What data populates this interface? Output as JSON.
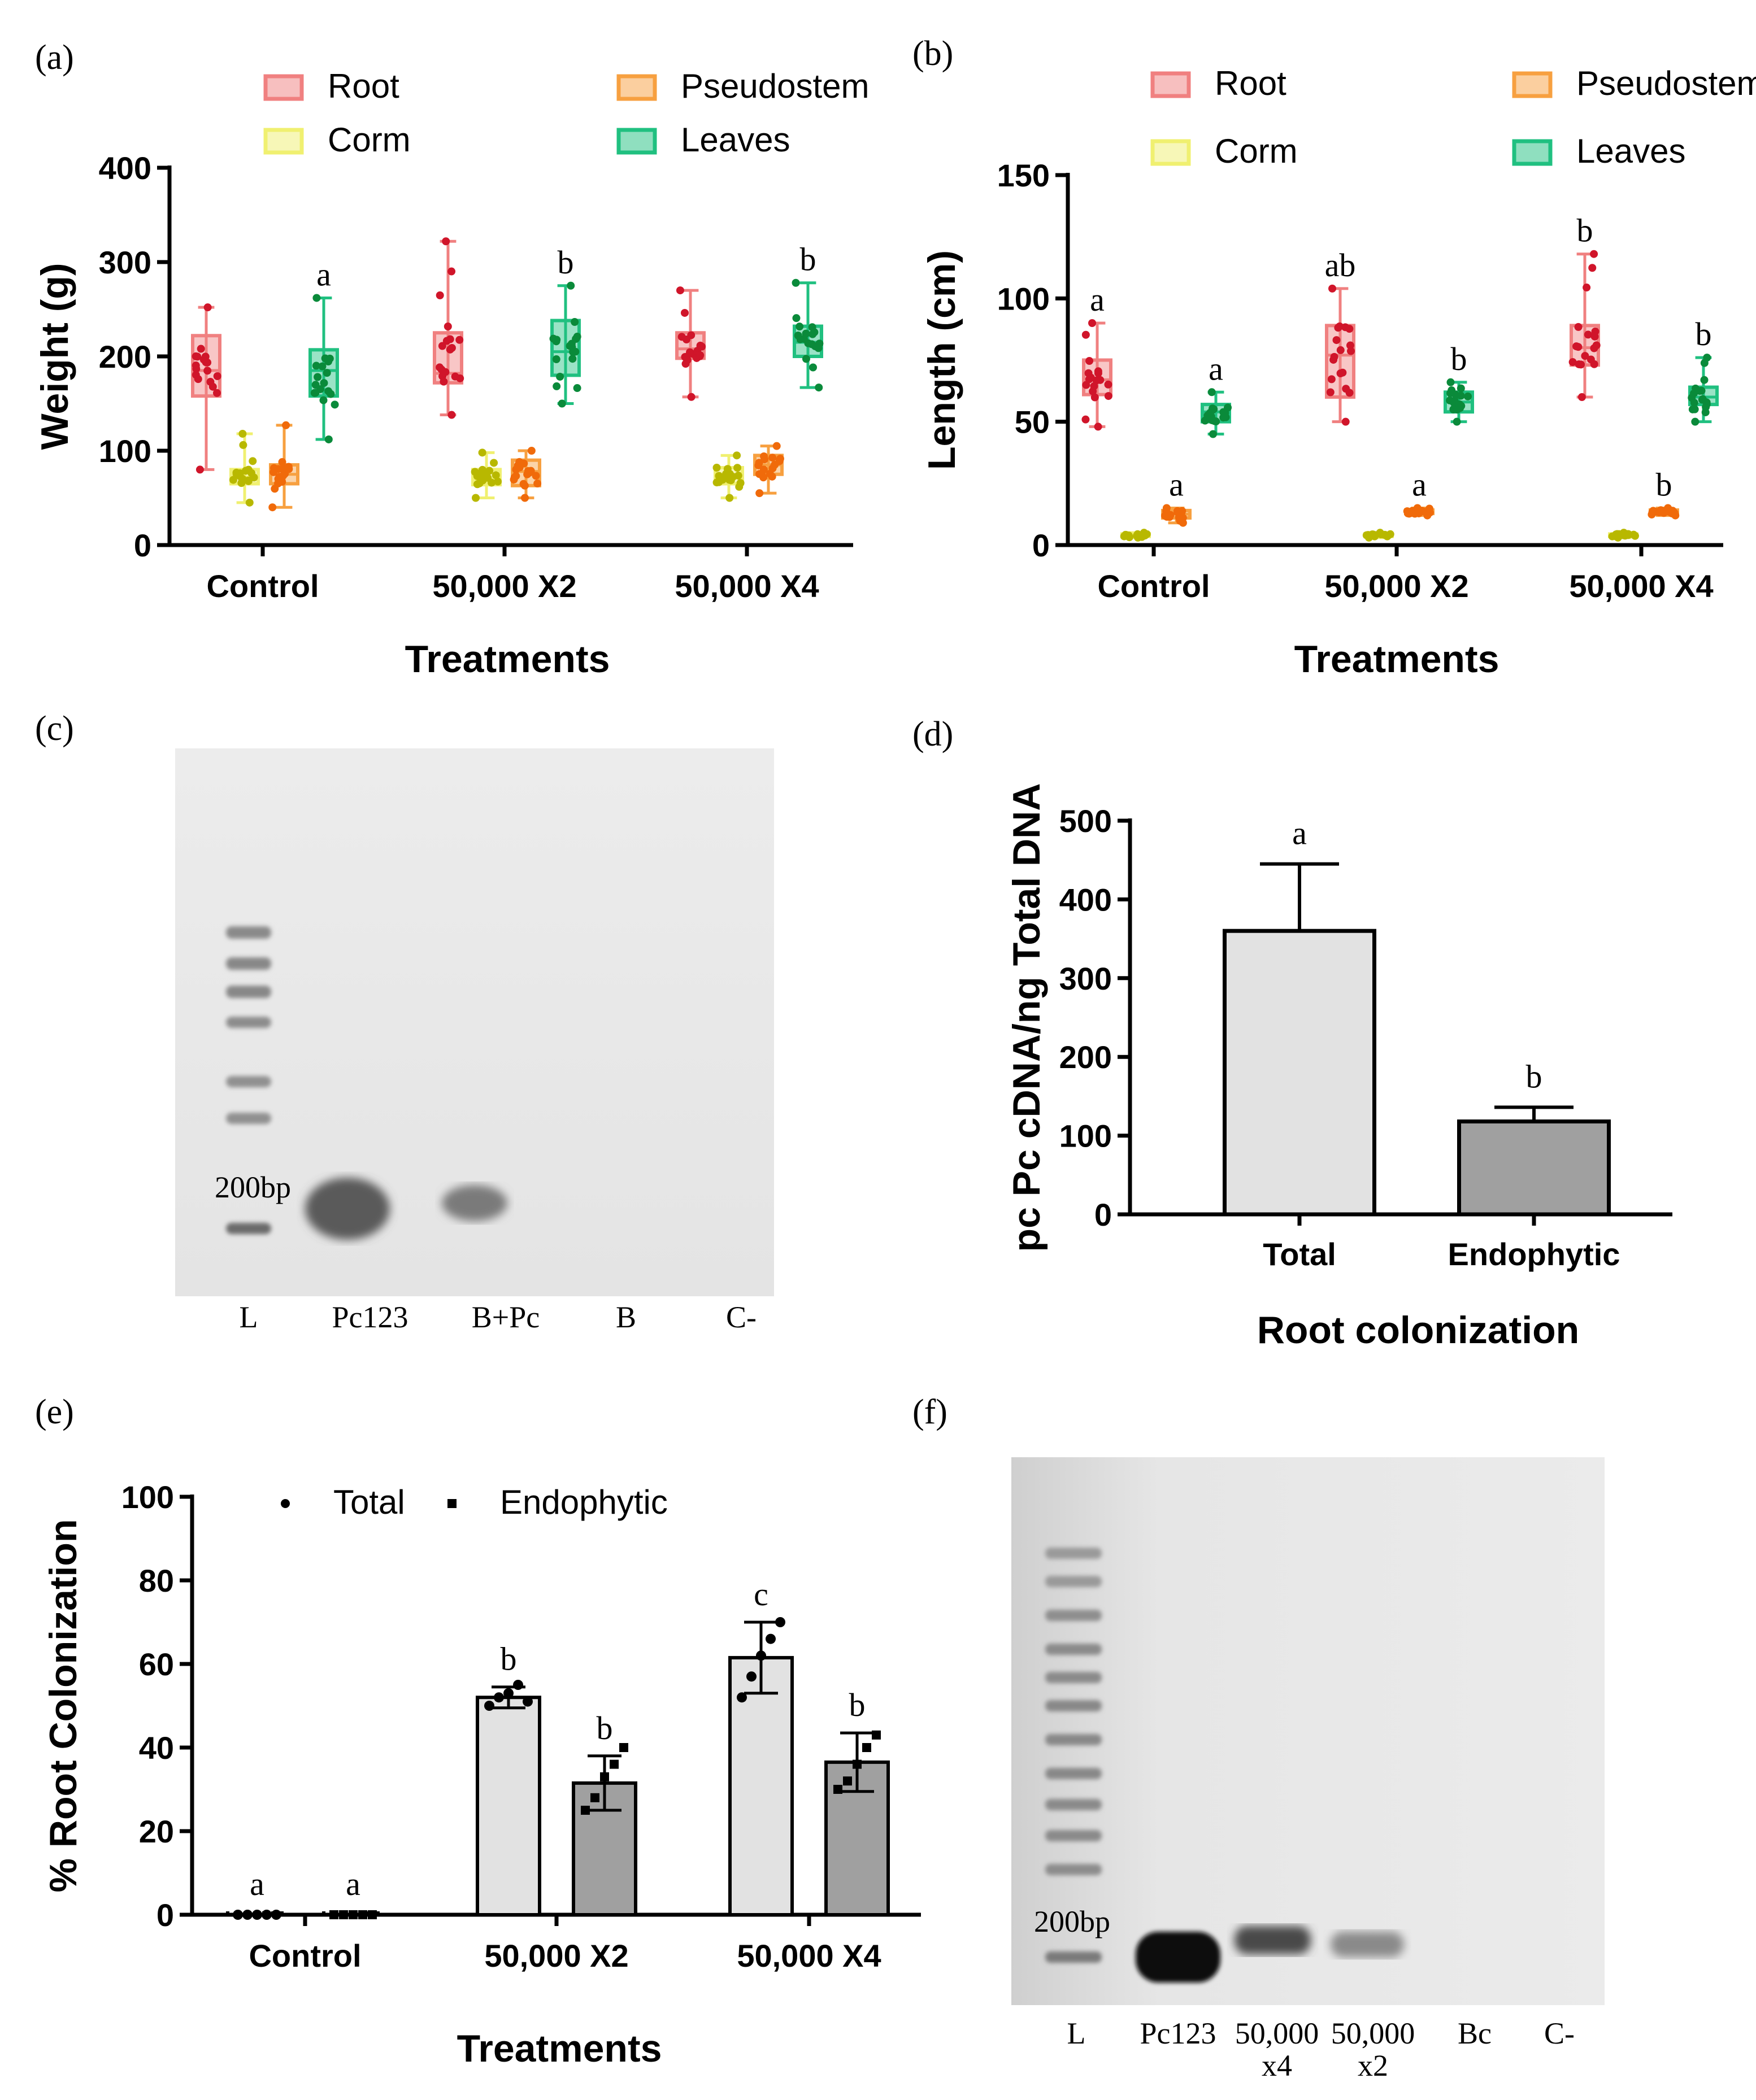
{
  "panels": {
    "a": "(a)",
    "b": "(b)",
    "c": "(c)",
    "d": "(d)",
    "e": "(e)",
    "f": "(f)"
  },
  "colors": {
    "root": "#f08080",
    "root_dot": "#d0152a",
    "pseudostem": "#f7a040",
    "pseudostem_dot": "#f06a0a",
    "corm": "#f0f070",
    "corm_dot": "#b8b800",
    "leaves": "#20c080",
    "leaves_dot": "#0a8a3a",
    "bar_total": "#e2e2e2",
    "bar_endo": "#a0a0a0"
  },
  "gel_c": {
    "marker_label": "200bp",
    "lanes": [
      "L",
      "Pc123",
      "B+Pc",
      "B",
      "C-"
    ]
  },
  "gel_f": {
    "marker_label": "200bp",
    "lanes": [
      "L",
      "Pc123",
      "50,000",
      "50,000",
      "Bc",
      "C-"
    ],
    "lanes_line2": [
      "",
      "",
      "x4",
      "x2",
      "",
      ""
    ]
  },
  "chart_data": [
    {
      "id": "a",
      "type": "box",
      "xlabel": "Treatments",
      "ylabel": "Weight (g)",
      "ylim": [
        0,
        400
      ],
      "yticks": [
        "0",
        "100",
        "200",
        "300",
        "400"
      ],
      "categories": [
        "Control",
        "50,000 X2",
        "50,000 X4"
      ],
      "legend": [
        "Root",
        "Pseudostem",
        "Corm",
        "Leaves"
      ],
      "legend_position": "top",
      "series": [
        {
          "name": "Root",
          "boxes": [
            {
              "min": 80,
              "q1": 158,
              "median": 185,
              "q3": 222,
              "max": 252
            },
            {
              "min": 138,
              "q1": 172,
              "median": 182,
              "q3": 225,
              "max": 322
            },
            {
              "min": 157,
              "q1": 198,
              "median": 208,
              "q3": 225,
              "max": 270
            }
          ],
          "labels": [
            "",
            "",
            ""
          ]
        },
        {
          "name": "Corm",
          "boxes": [
            {
              "min": 45,
              "q1": 65,
              "median": 72,
              "q3": 80,
              "max": 118
            },
            {
              "min": 50,
              "q1": 64,
              "median": 70,
              "q3": 80,
              "max": 98
            },
            {
              "min": 50,
              "q1": 65,
              "median": 72,
              "q3": 82,
              "max": 95
            }
          ],
          "labels": [
            "",
            "",
            ""
          ]
        },
        {
          "name": "Pseudostem",
          "boxes": [
            {
              "min": 40,
              "q1": 65,
              "median": 75,
              "q3": 85,
              "max": 127
            },
            {
              "min": 50,
              "q1": 63,
              "median": 78,
              "q3": 90,
              "max": 100
            },
            {
              "min": 55,
              "q1": 75,
              "median": 85,
              "q3": 95,
              "max": 105
            }
          ],
          "labels": [
            "",
            "",
            ""
          ]
        },
        {
          "name": "Leaves",
          "boxes": [
            {
              "min": 112,
              "q1": 158,
              "median": 185,
              "q3": 207,
              "max": 262
            },
            {
              "min": 150,
              "q1": 180,
              "median": 205,
              "q3": 238,
              "max": 275
            },
            {
              "min": 167,
              "q1": 200,
              "median": 215,
              "q3": 232,
              "max": 278
            }
          ],
          "labels": [
            "a",
            "b",
            "b"
          ]
        }
      ]
    },
    {
      "id": "b",
      "type": "box",
      "xlabel": "Treatments",
      "ylabel": "Length (cm)",
      "ylim": [
        0,
        150
      ],
      "yticks": [
        "0",
        "50",
        "100",
        "150"
      ],
      "categories": [
        "Control",
        "50,000 X2",
        "50,000 X4"
      ],
      "legend": [
        "Root",
        "Pseudostem",
        "Corm",
        "Leaves"
      ],
      "legend_position": "top",
      "series": [
        {
          "name": "Root",
          "boxes": [
            {
              "min": 48,
              "q1": 61,
              "median": 67,
              "q3": 75,
              "max": 90
            },
            {
              "min": 50,
              "q1": 60,
              "median": 77,
              "q3": 89,
              "max": 104
            },
            {
              "min": 60,
              "q1": 73,
              "median": 80,
              "q3": 89,
              "max": 118
            }
          ],
          "labels": [
            "a",
            "ab",
            "b"
          ]
        },
        {
          "name": "Corm",
          "boxes": [
            {
              "min": 3,
              "q1": 3.5,
              "median": 4,
              "q3": 4.5,
              "max": 5
            },
            {
              "min": 3,
              "q1": 3.5,
              "median": 4,
              "q3": 4.5,
              "max": 5
            },
            {
              "min": 3,
              "q1": 3.5,
              "median": 4,
              "q3": 4.5,
              "max": 5
            }
          ],
          "labels": [
            "",
            "",
            ""
          ]
        },
        {
          "name": "Pseudostem",
          "boxes": [
            {
              "min": 9,
              "q1": 11,
              "median": 12.5,
              "q3": 14,
              "max": 15
            },
            {
              "min": 12,
              "q1": 12.8,
              "median": 13.5,
              "q3": 14.2,
              "max": 15
            },
            {
              "min": 12,
              "q1": 12.8,
              "median": 13.5,
              "q3": 14.2,
              "max": 15
            }
          ],
          "labels": [
            "a",
            "a",
            "b"
          ]
        },
        {
          "name": "Leaves",
          "boxes": [
            {
              "min": 45,
              "q1": 50,
              "median": 54,
              "q3": 57,
              "max": 62
            },
            {
              "min": 50,
              "q1": 54,
              "median": 58,
              "q3": 62,
              "max": 66
            },
            {
              "min": 50,
              "q1": 57,
              "median": 60,
              "q3": 64,
              "max": 76
            }
          ],
          "labels": [
            "a",
            "b",
            "b"
          ]
        }
      ]
    },
    {
      "id": "d",
      "type": "bar",
      "xlabel": "Root colonization",
      "ylabel": "pc Pc cDNA/ng Total DNA",
      "ylim": [
        0,
        500
      ],
      "yticks": [
        "0",
        "100",
        "200",
        "300",
        "400",
        "500"
      ],
      "categories": [
        "Total",
        "Endophytic"
      ],
      "values": [
        360,
        118
      ],
      "errors": [
        85,
        18
      ],
      "labels": [
        "a",
        "b"
      ]
    },
    {
      "id": "e",
      "type": "bar",
      "xlabel": "Treatments",
      "ylabel": "% Root Colonization",
      "ylim": [
        0,
        100
      ],
      "yticks": [
        "0",
        "20",
        "40",
        "60",
        "80",
        "100"
      ],
      "categories": [
        "Control",
        "50,000 X2",
        "50,000 X4"
      ],
      "legend": [
        "Total",
        "Endophytic"
      ],
      "legend_position": "top",
      "series": [
        {
          "name": "Total",
          "values": [
            0,
            52,
            61.5
          ],
          "errors": [
            0,
            2.5,
            8.5
          ],
          "labels": [
            "a",
            "b",
            "c"
          ],
          "points": [
            [
              0,
              0,
              0,
              0,
              0
            ],
            [
              50,
              52,
              53,
              55,
              51
            ],
            [
              52,
              57,
              62,
              66,
              70
            ]
          ]
        },
        {
          "name": "Endophytic",
          "values": [
            0,
            31.5,
            36.5
          ],
          "errors": [
            0,
            6.5,
            7
          ],
          "labels": [
            "a",
            "b",
            "b"
          ],
          "points": [
            [
              0,
              0,
              0,
              0,
              0
            ],
            [
              25,
              28,
              33,
              36,
              40
            ],
            [
              30,
              32,
              36,
              40,
              43
            ]
          ]
        }
      ]
    }
  ]
}
